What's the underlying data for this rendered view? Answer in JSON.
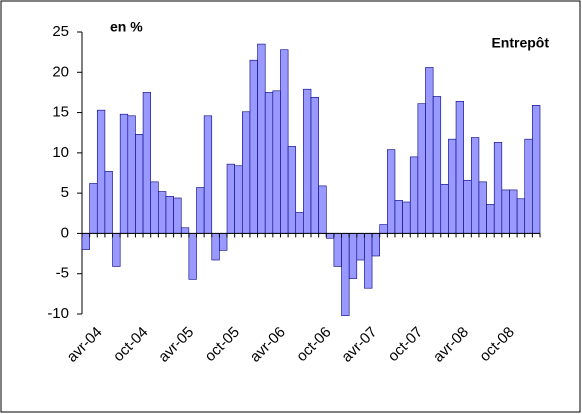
{
  "chart_data": {
    "type": "bar",
    "title": "en %",
    "annotation": "Entrepôt",
    "categories": [
      "avr-04",
      null,
      null,
      null,
      null,
      null,
      "oct-04",
      null,
      null,
      null,
      null,
      null,
      "avr-05",
      null,
      null,
      null,
      null,
      null,
      "oct-05",
      null,
      null,
      null,
      null,
      null,
      "avr-06",
      null,
      null,
      null,
      null,
      null,
      "oct-06",
      null,
      null,
      null,
      null,
      null,
      "avr-07",
      null,
      null,
      null,
      null,
      null,
      "oct-07",
      null,
      null,
      null,
      null,
      null,
      "avr-08",
      null,
      null,
      null,
      null,
      null,
      "oct-08",
      null,
      null,
      null,
      null,
      null
    ],
    "values": [
      -2,
      6.2,
      15.3,
      7.7,
      -4.1,
      14.8,
      14.6,
      12.3,
      17.5,
      6.4,
      5.2,
      4.6,
      4.4,
      0.7,
      -5.7,
      5.7,
      14.6,
      -3.3,
      -2.1,
      8.6,
      8.4,
      15.1,
      21.5,
      23.5,
      17.5,
      17.7,
      22.8,
      10.8,
      2.6,
      17.9,
      16.9,
      5.9,
      -0.6,
      -4.1,
      -10.2,
      -5.6,
      -3.3,
      -6.8,
      -2.8,
      1.1,
      10.4,
      4.1,
      3.9,
      9.5,
      16.1,
      20.6,
      17.0,
      6.1,
      11.7,
      16.4,
      6.6,
      11.9,
      6.4,
      3.6,
      11.3,
      5.4,
      5.4,
      4.3,
      11.7,
      15.9
    ],
    "color": "#9999ff",
    "ylim": [
      -10,
      25
    ],
    "yticks": [
      -10,
      -5,
      0,
      5,
      10,
      15,
      20,
      25
    ],
    "grid": false
  }
}
